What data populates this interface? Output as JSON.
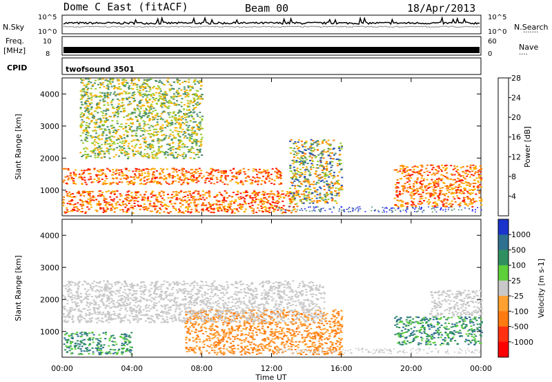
{
  "header": {
    "title": "Dome C East (fitACF)",
    "beam": "Beam 00",
    "date": "18/Apr/2013"
  },
  "top_panels": {
    "nsky_label": "N.Sky",
    "nsky_ticks": [
      "10^5",
      "10^0"
    ],
    "nsearch_label": "N.Search",
    "nsearch_dots": "·······",
    "freq_label_line1": "Freq.",
    "freq_label_line2": "[MHz]",
    "freq_ticks": [
      "10",
      "8"
    ],
    "nave_label": "Nave",
    "nave_dots": "····",
    "nave_ticks": [
      "60",
      "0"
    ],
    "cpid_label": "CPID",
    "cpid_value": "twofsound 3501"
  },
  "chart_data": [
    {
      "type": "heatmap",
      "title": "",
      "ylabel": "Slant Range [km]",
      "xlabel": "",
      "x_ticks": [
        "00:00",
        "04:00",
        "08:00",
        "12:00",
        "16:00",
        "20:00",
        "00:00"
      ],
      "y_ticks": [
        1000,
        2000,
        3000,
        4000
      ],
      "ylim": [
        200,
        4500
      ],
      "colorbar": {
        "label": "Power [dB]",
        "ticks": [
          4,
          8,
          12,
          16,
          20,
          24,
          28
        ],
        "colors": [
          "#1a1aff",
          "#2a4fb0",
          "#4a8f6a",
          "#9acd32",
          "#ffb000",
          "#ff7a00",
          "#ff1a00"
        ]
      },
      "echo_regions": [
        {
          "t_start": 0.0,
          "t_end": 13.5,
          "range_min": 300,
          "range_max": 1000,
          "level": "high"
        },
        {
          "t_start": 0.0,
          "t_end": 12.5,
          "range_min": 1200,
          "range_max": 1700,
          "level": "high"
        },
        {
          "t_start": 13.0,
          "t_end": 16.0,
          "range_min": 600,
          "range_max": 2600,
          "level": "medium"
        },
        {
          "t_start": 19.0,
          "t_end": 24.0,
          "range_min": 500,
          "range_max": 1800,
          "level": "high"
        },
        {
          "t_start": 1.0,
          "t_end": 8.0,
          "range_min": 2000,
          "range_max": 4500,
          "level": "low"
        }
      ]
    },
    {
      "type": "heatmap",
      "title": "",
      "ylabel": "Slant Range [km]",
      "xlabel": "Time UT",
      "x_ticks": [
        "00:00",
        "04:00",
        "08:00",
        "12:00",
        "16:00",
        "20:00",
        "00:00"
      ],
      "y_ticks": [
        1000,
        2000,
        3000,
        4000
      ],
      "ylim": [
        200,
        4500
      ],
      "colorbar": {
        "label": "Velocity [m s-1]",
        "ticks": [
          "1000",
          "500",
          "100",
          "25",
          "-25",
          "-100",
          "-500",
          "-1000"
        ],
        "colors": [
          "#1a33cc",
          "#2f6f90",
          "#2f8f60",
          "#5ccf3a",
          "#c8c8c8",
          "#ffa030",
          "#ff7a10",
          "#ff3010",
          "#ff0000"
        ]
      },
      "echo_regions": [
        {
          "t_start": 0.0,
          "t_end": 4.0,
          "range_min": 300,
          "range_max": 1000,
          "level": "positive"
        },
        {
          "t_start": 7.0,
          "t_end": 16.0,
          "range_min": 300,
          "range_max": 1700,
          "level": "negative"
        },
        {
          "t_start": 0.0,
          "t_end": 15.0,
          "range_min": 1300,
          "range_max": 2600,
          "level": "near-zero"
        },
        {
          "t_start": 19.0,
          "t_end": 24.0,
          "range_min": 600,
          "range_max": 1500,
          "level": "positive"
        },
        {
          "t_start": 21.0,
          "t_end": 24.0,
          "range_min": 1500,
          "range_max": 2300,
          "level": "near-zero"
        }
      ]
    }
  ]
}
